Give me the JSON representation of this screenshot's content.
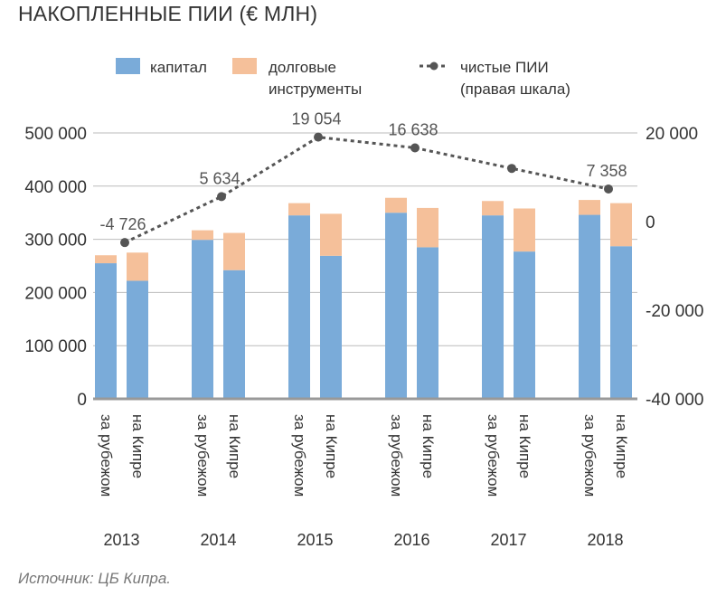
{
  "title": "НАКОПЛЕННЫЕ ПИИ (€ МЛН)",
  "source": "Источник: ЦБ Кипра.",
  "colors": {
    "capital": "#7aabd9",
    "debt": "#f5c09a",
    "net_line": "#555555",
    "grid": "#bbbbbb",
    "baseline": "#999999"
  },
  "chart_data": {
    "type": "bar",
    "stacked": true,
    "title": "НАКОПЛЕННЫЕ ПИИ (€ МЛН)",
    "years": [
      "2013",
      "2014",
      "2015",
      "2016",
      "2017",
      "2018"
    ],
    "bar_labels": [
      "за рубежом",
      "на Кипре"
    ],
    "series": [
      {
        "name": "капитал",
        "values": [
          [
            255000,
            222000
          ],
          [
            299000,
            242000
          ],
          [
            345000,
            269000
          ],
          [
            350000,
            285000
          ],
          [
            345000,
            277000
          ],
          [
            346000,
            287000
          ]
        ]
      },
      {
        "name": "долговые инструменты",
        "values": [
          [
            15000,
            53000
          ],
          [
            18000,
            70000
          ],
          [
            23000,
            79000
          ],
          [
            28000,
            74000
          ],
          [
            27000,
            81000
          ],
          [
            28000,
            81000
          ]
        ]
      }
    ],
    "net_series": {
      "name": "чистые ПИИ (правая шкала)",
      "values": [
        -4726,
        5634,
        19054,
        16638,
        12000,
        7358
      ],
      "labels": [
        "-4 726",
        "5 634",
        "19 054",
        "16 638",
        "",
        "7 358"
      ]
    },
    "y_left": {
      "min": 0,
      "max": 500000,
      "ticks": [
        0,
        100000,
        200000,
        300000,
        400000,
        500000
      ],
      "tick_labels": [
        "0",
        "100 000",
        "200 000",
        "300 000",
        "400 000",
        "500 000"
      ]
    },
    "y_right": {
      "min": -40000,
      "max": 20000,
      "ticks": [
        -40000,
        -20000,
        0,
        20000
      ],
      "tick_labels": [
        "-40 000",
        "-20 000",
        "0",
        "20 000"
      ]
    },
    "legend": {
      "capital": "капитал",
      "debt_line1": "долговые",
      "debt_line2": "инструменты",
      "net_line1": "чистые ПИИ",
      "net_line2": "(правая шкала)"
    },
    "grid": true,
    "legend_position": "top"
  }
}
